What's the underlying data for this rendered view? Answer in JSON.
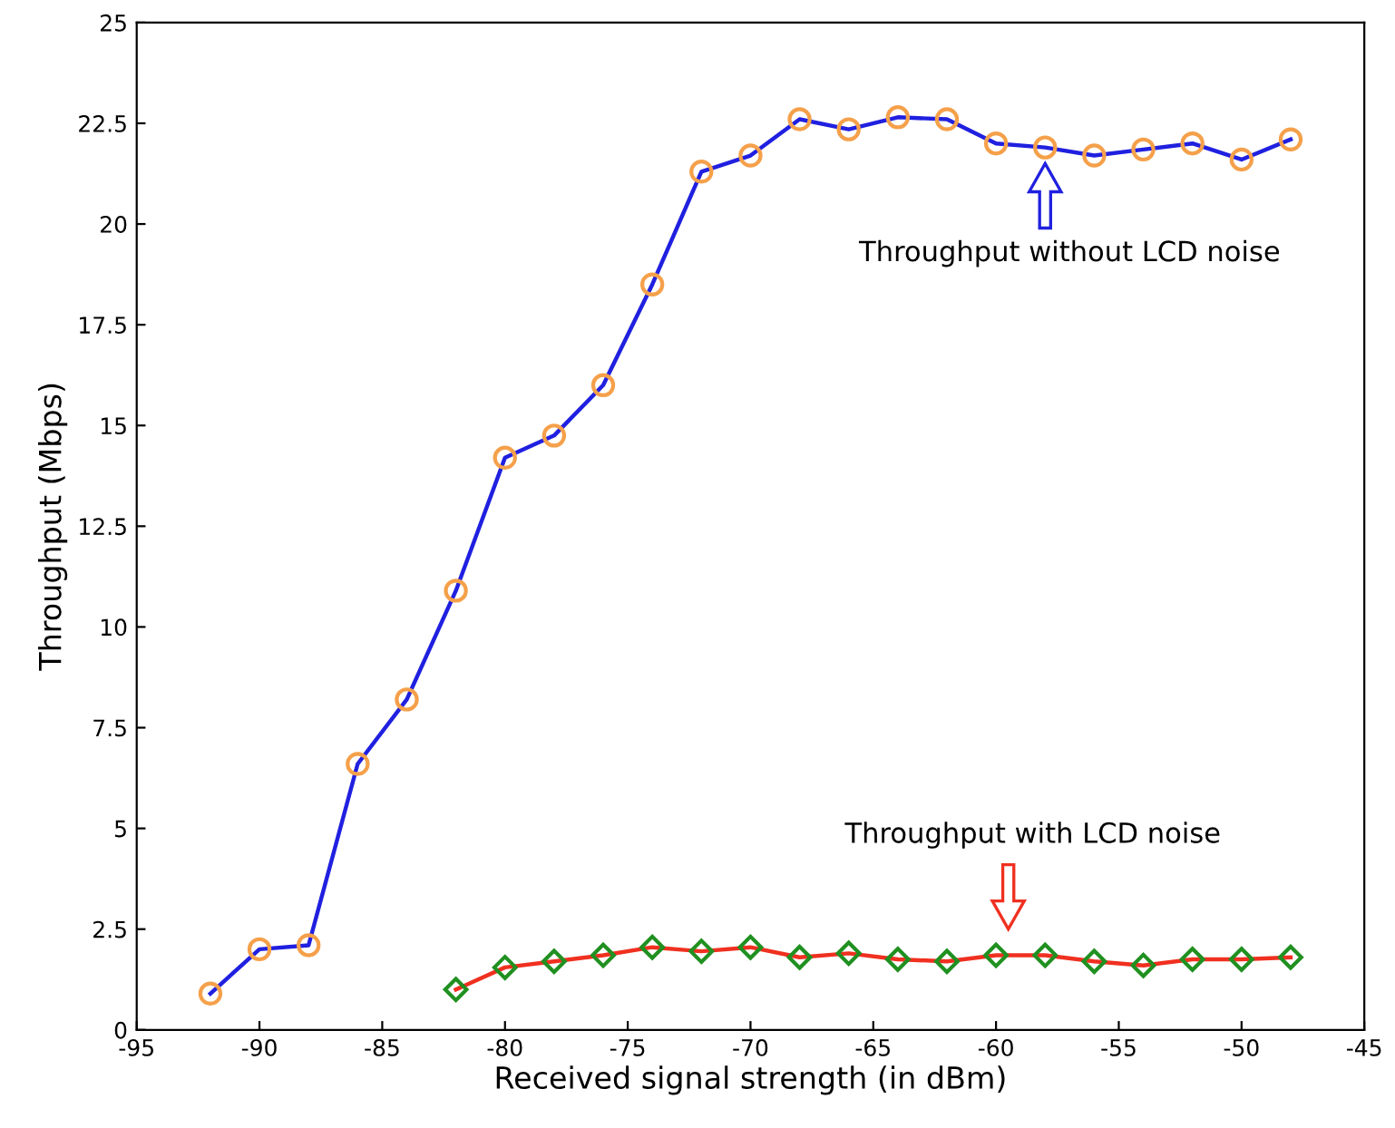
{
  "chart_data": {
    "type": "line",
    "xlabel": "Received signal strength (in dBm)",
    "ylabel": "Throughput (Mbps)",
    "xlim": [
      -95,
      -45
    ],
    "xticks": [
      -95,
      -90,
      -85,
      -80,
      -75,
      -70,
      -65,
      -60,
      -55,
      -50,
      -45
    ],
    "ylim": [
      0,
      25
    ],
    "yticks": [
      0,
      2.5,
      5,
      7.5,
      10,
      12.5,
      15,
      17.5,
      20,
      22.5,
      25
    ],
    "grid": false,
    "legend": false,
    "line_style": "solid",
    "series": [
      {
        "color": "#2020e0",
        "marker": "circle",
        "x": [
          -92,
          -90,
          -88,
          -86,
          -84,
          -82,
          -80,
          -78,
          -76,
          -74,
          -72,
          -70,
          -68,
          -66,
          -64,
          -62,
          -60,
          -58,
          -56,
          -54,
          -52,
          -50,
          -48
        ],
        "values": [
          0.9,
          2.0,
          2.1,
          6.6,
          8.2,
          10.9,
          14.2,
          14.75,
          16.0,
          18.5,
          21.3,
          21.7,
          22.6,
          22.35,
          22.65,
          22.6,
          22.0,
          21.9,
          21.7,
          21.85,
          22.0,
          21.6,
          22.1
        ]
      },
      {
        "color": "#f03020",
        "marker": "diamond",
        "x": [
          -82,
          -80,
          -78,
          -76,
          -74,
          -72,
          -70,
          -68,
          -66,
          -64,
          -62,
          -60,
          -58,
          -56,
          -54,
          -52,
          -50,
          -48
        ],
        "values": [
          1.0,
          1.55,
          1.7,
          1.85,
          2.05,
          1.95,
          2.05,
          1.8,
          1.9,
          1.75,
          1.7,
          1.85,
          1.85,
          1.7,
          1.6,
          1.75,
          1.75,
          1.8
        ]
      }
    ],
    "annotations": [
      "Throughput without LCD noise",
      "Throughput with LCD noise"
    ]
  }
}
